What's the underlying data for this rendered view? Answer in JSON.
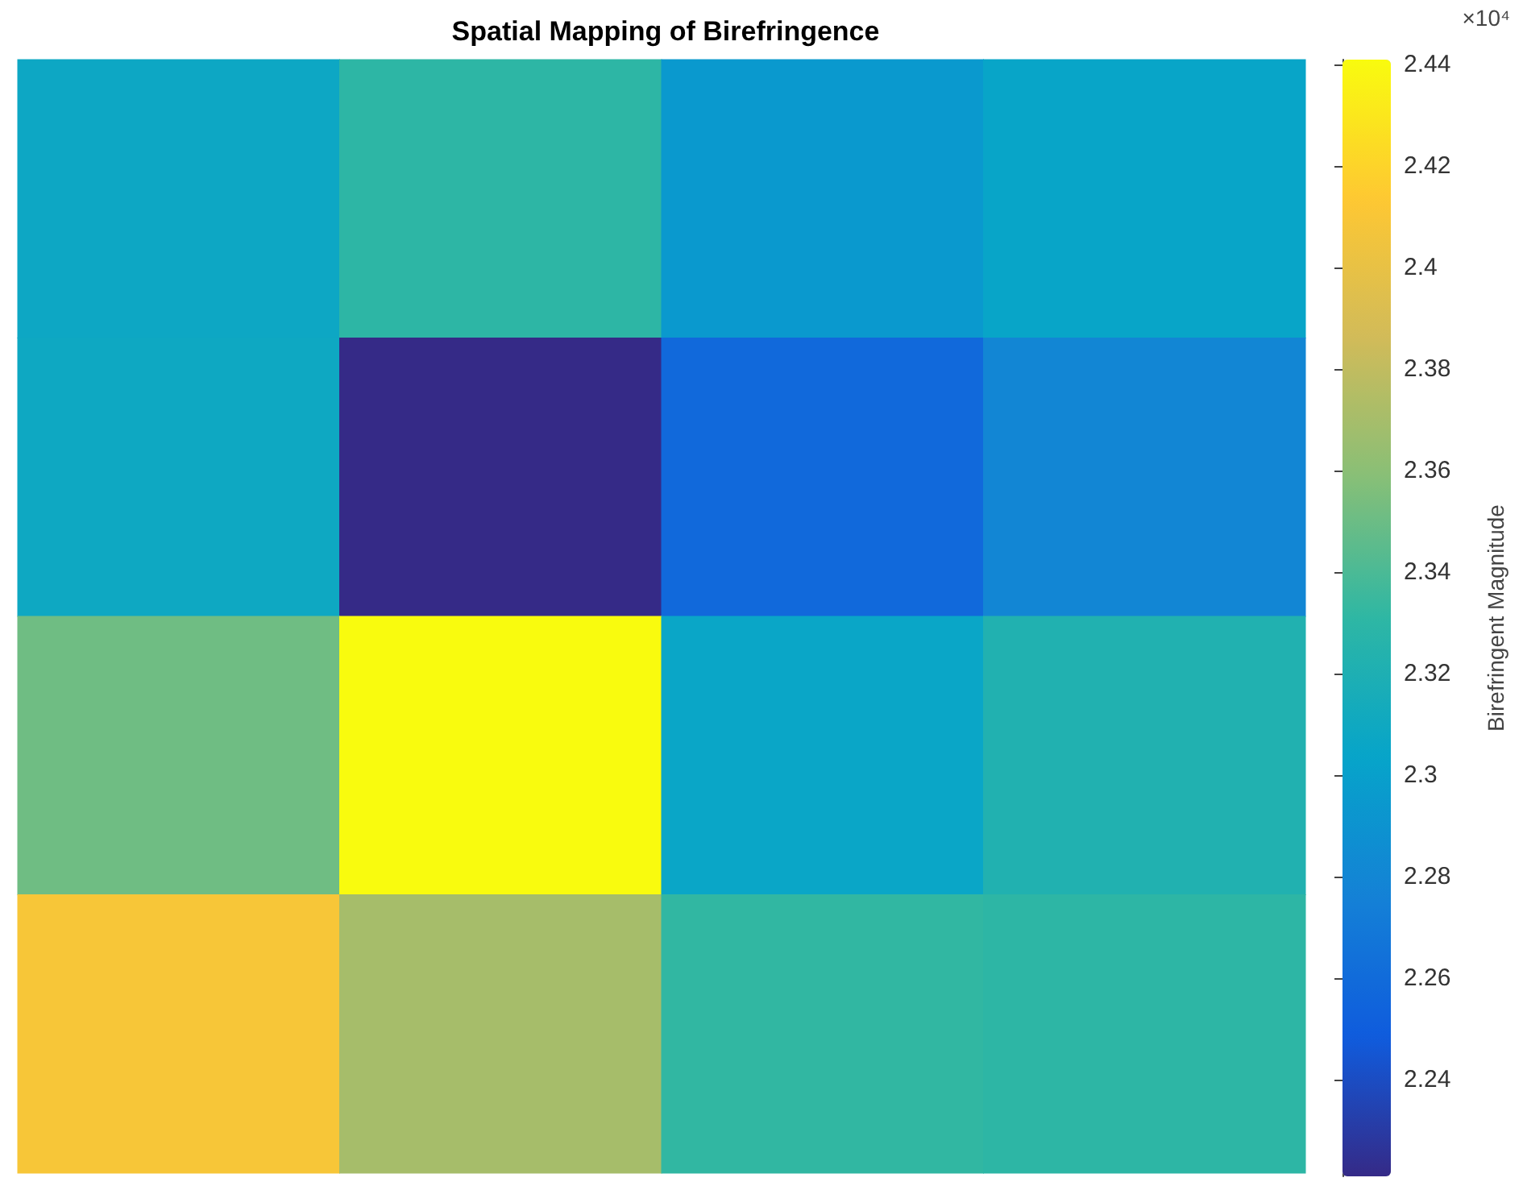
{
  "chart_data": {
    "type": "heatmap",
    "title": "Spatial Mapping of Birefringence",
    "clabel": "Birefringent Magnitude",
    "annotations": [
      "×10⁴"
    ],
    "categories": [
      null,
      null,
      null,
      null
    ],
    "y_categories": [
      null,
      null,
      null,
      null
    ],
    "cells": [
      [
        2.308,
        2.33,
        2.295,
        2.305
      ],
      [
        2.309,
        2.221,
        2.258,
        2.28
      ],
      [
        2.351,
        2.441,
        2.306,
        2.322
      ],
      [
        2.409,
        2.37,
        2.332,
        2.33
      ]
    ],
    "clim": [
      2.221,
      2.441
    ],
    "cticks": [
      2.24,
      2.26,
      2.28,
      2.3,
      2.32,
      2.34,
      2.36,
      2.38,
      2.4,
      2.42,
      2.44
    ]
  }
}
